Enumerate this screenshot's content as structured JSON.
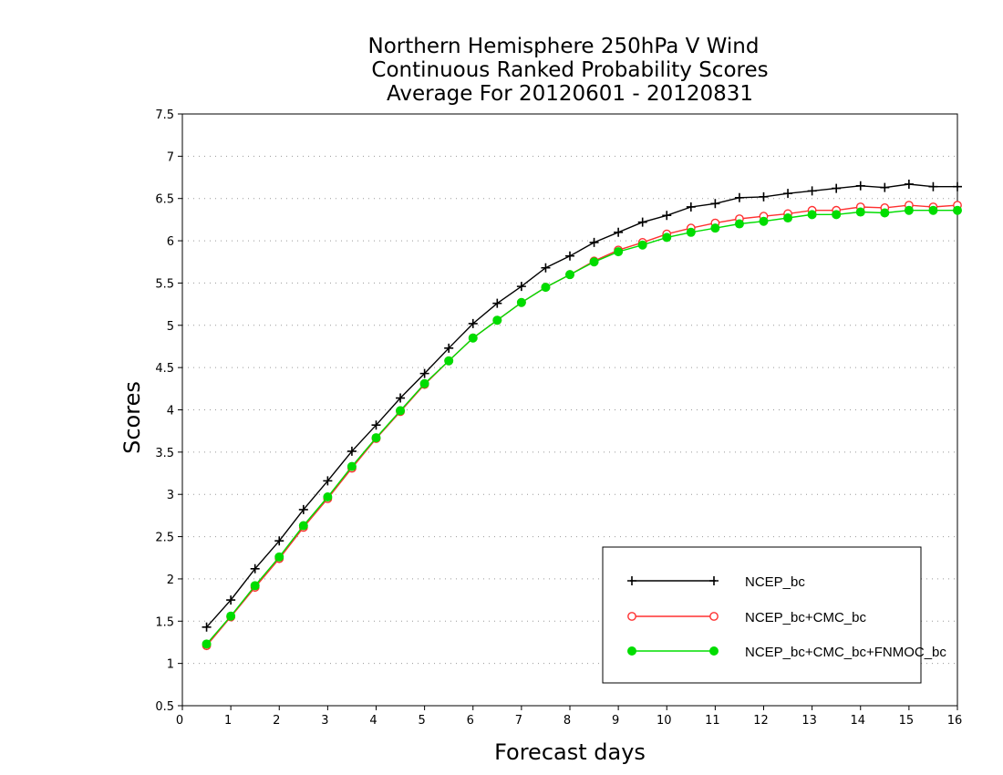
{
  "chart_data": {
    "type": "line",
    "title": [
      "Northern Hemisphere 250hPa V Wind",
      "Continuous Ranked Probability Scores",
      "Average For 20120601 - 20120831"
    ],
    "xlabel": "Forecast days",
    "ylabel": "Scores",
    "xlim": [
      0,
      16
    ],
    "ylim": [
      0.5,
      7.5
    ],
    "xticks": [
      "0",
      "1",
      "2",
      "3",
      "4",
      "5",
      "6",
      "7",
      "8",
      "9",
      "10",
      "11",
      "12",
      "13",
      "14",
      "15",
      "16"
    ],
    "yticks": [
      "0.5",
      "1",
      "1.5",
      "2",
      "2.5",
      "3",
      "3.5",
      "4",
      "4.5",
      "5",
      "5.5",
      "6",
      "6.5",
      "7",
      "7.5"
    ],
    "grid": "horizontal dotted",
    "legend_position": "bottom-right",
    "x": [
      0.5,
      1,
      1.5,
      2,
      2.5,
      3,
      3.5,
      4,
      4.5,
      5,
      5.5,
      6,
      6.5,
      7,
      7.5,
      8,
      8.5,
      9,
      9.5,
      10,
      10.5,
      11,
      11.5,
      12,
      12.5,
      13,
      13.5,
      14,
      14.5,
      15,
      15.5,
      16
    ],
    "series": [
      {
        "name": "NCEP_bc",
        "color": "#000000",
        "marker": "plus",
        "values": [
          1.43,
          1.75,
          2.12,
          2.45,
          2.82,
          3.16,
          3.51,
          3.82,
          4.14,
          4.43,
          4.73,
          5.02,
          5.26,
          5.46,
          5.68,
          5.82,
          5.98,
          6.1,
          6.22,
          6.3,
          6.4,
          6.44,
          6.51,
          6.52,
          6.56,
          6.59,
          6.62,
          6.65,
          6.63,
          6.67,
          6.64,
          6.64
        ]
      },
      {
        "name": "NCEP_bc+CMC_bc",
        "color": "#ff3030",
        "marker": "open-circle",
        "values": [
          1.21,
          1.55,
          1.9,
          2.24,
          2.61,
          2.95,
          3.31,
          3.66,
          3.98,
          4.3,
          4.58,
          4.85,
          5.06,
          5.27,
          5.45,
          5.6,
          5.76,
          5.89,
          5.98,
          6.08,
          6.15,
          6.21,
          6.26,
          6.29,
          6.32,
          6.36,
          6.36,
          6.4,
          6.39,
          6.42,
          6.4,
          6.42
        ]
      },
      {
        "name": "NCEP_bc+CMC_bc+FNMOC_bc",
        "color": "#00dd00",
        "marker": "filled-circle",
        "values": [
          1.23,
          1.56,
          1.92,
          2.26,
          2.63,
          2.97,
          3.33,
          3.67,
          3.99,
          4.31,
          4.58,
          4.85,
          5.06,
          5.27,
          5.45,
          5.6,
          5.75,
          5.87,
          5.95,
          6.04,
          6.1,
          6.15,
          6.2,
          6.23,
          6.27,
          6.31,
          6.31,
          6.34,
          6.33,
          6.36,
          6.36,
          6.36
        ]
      }
    ]
  }
}
